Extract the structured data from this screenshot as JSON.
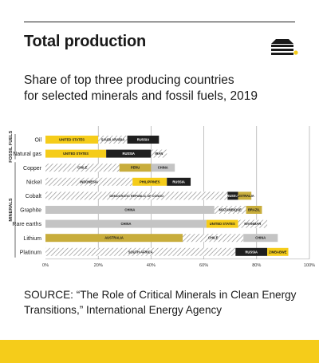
{
  "title": "Total production",
  "subtitle": [
    "Share of top three producing countries",
    "for selected minerals and fossil fuels, 2019"
  ],
  "source": [
    "SOURCE: “The Role of Critical Minerals in Clean Energy",
    "Transitions,” International Energy Agency"
  ],
  "colors": {
    "accent": "#f5cc1a",
    "gold": "#c8ad3c",
    "black": "#1f1f1f",
    "gray": "#c4c4c4",
    "hatch": "#8a8a8a"
  },
  "chart_data": {
    "type": "bar",
    "orientation": "horizontal",
    "stacked": true,
    "xlim": [
      0,
      100
    ],
    "x_ticks": [
      "0%",
      "20%",
      "40%",
      "60%",
      "80%",
      "100%"
    ],
    "x_tick_values": [
      0,
      20,
      40,
      60,
      80,
      100
    ],
    "groups": [
      {
        "label": "FOSSIL FUELS",
        "categories": [
          "Oil",
          "Natural gas"
        ]
      },
      {
        "label": "MINERALS",
        "categories": [
          "Copper",
          "Nickel",
          "Cobalt",
          "Graphite",
          "Rare earths",
          "Lithium",
          "Platinum"
        ]
      }
    ],
    "categories": [
      "Oil",
      "Natural gas",
      "Copper",
      "Nickel",
      "Cobalt",
      "Graphite",
      "Rare earths",
      "Lithium",
      "Platinum"
    ],
    "bars": [
      {
        "category": "Oil",
        "segments": [
          {
            "country": "UNITED STATES",
            "value": 20,
            "style": "yellow"
          },
          {
            "country": "SAUDI ARABIA",
            "value": 11,
            "style": "hatch"
          },
          {
            "country": "RUSSIA",
            "value": 12,
            "style": "black"
          }
        ]
      },
      {
        "category": "Natural gas",
        "segments": [
          {
            "country": "UNITED STATES",
            "value": 23,
            "style": "yellow"
          },
          {
            "country": "RUSSIA",
            "value": 17,
            "style": "black"
          },
          {
            "country": "IRAN",
            "value": 6,
            "style": "hatch"
          }
        ]
      },
      {
        "category": "Copper",
        "segments": [
          {
            "country": "CHILE",
            "value": 28,
            "style": "hatch"
          },
          {
            "country": "PERU",
            "value": 12,
            "style": "gold"
          },
          {
            "country": "CHINA",
            "value": 9,
            "style": "gray"
          }
        ]
      },
      {
        "category": "Nickel",
        "segments": [
          {
            "country": "INDONESIA",
            "value": 33,
            "style": "hatch"
          },
          {
            "country": "PHILIPPINES",
            "value": 13,
            "style": "yellow"
          },
          {
            "country": "RUSSIA",
            "value": 9,
            "style": "black"
          }
        ]
      },
      {
        "category": "Cobalt",
        "segments": [
          {
            "country": "DEMOCRATIC REPUBLIC OF CONGO",
            "value": 69,
            "style": "hatch"
          },
          {
            "country": "RUSSIA",
            "value": 4,
            "style": "black"
          },
          {
            "country": "AUSTRALIA",
            "value": 5,
            "style": "gold"
          }
        ]
      },
      {
        "category": "Graphite",
        "segments": [
          {
            "country": "CHINA",
            "value": 64,
            "style": "gray"
          },
          {
            "country": "MOZAMBIQUE",
            "value": 12,
            "style": "hatch"
          },
          {
            "country": "BRAZIL",
            "value": 6,
            "style": "gold"
          }
        ]
      },
      {
        "category": "Rare earths",
        "segments": [
          {
            "country": "CHINA",
            "value": 61,
            "style": "gray"
          },
          {
            "country": "UNITED STATES",
            "value": 12,
            "style": "yellow"
          },
          {
            "country": "MYANMAR",
            "value": 11,
            "style": "hatch"
          }
        ]
      },
      {
        "category": "Lithium",
        "segments": [
          {
            "country": "AUSTRALIA",
            "value": 52,
            "style": "gold"
          },
          {
            "country": "CHILE",
            "value": 23,
            "style": "hatch"
          },
          {
            "country": "CHINA",
            "value": 13,
            "style": "gray"
          }
        ]
      },
      {
        "category": "Platinum",
        "segments": [
          {
            "country": "SOUTH AFRICA",
            "value": 72,
            "style": "hatch"
          },
          {
            "country": "RUSSIA",
            "value": 12,
            "style": "black"
          },
          {
            "country": "ZIMBABWE",
            "value": 8,
            "style": "yellow"
          }
        ]
      }
    ]
  }
}
